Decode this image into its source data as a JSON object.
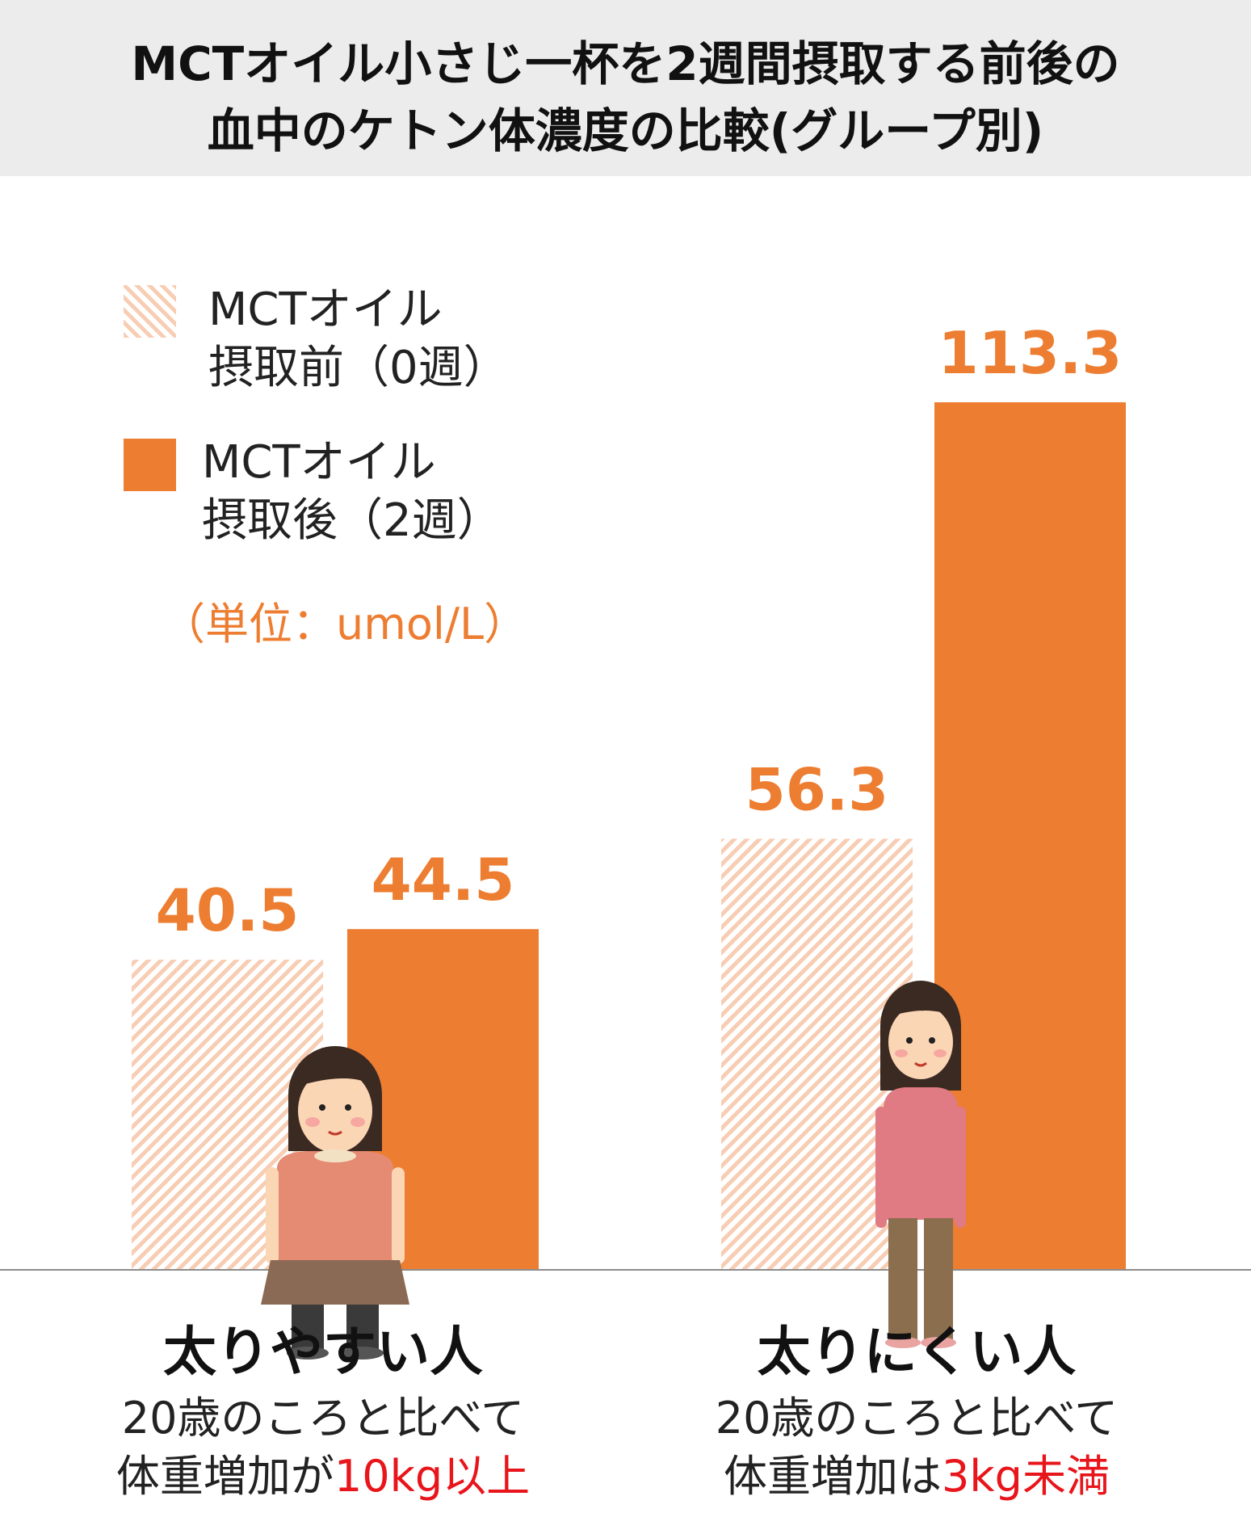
{
  "title": {
    "line1": "MCTオイル小さじ一杯を2週間摂取する前後の",
    "line2": "血中のケトン体濃度の比較(グループ別)"
  },
  "legend": {
    "before": {
      "line1": "MCTオイル",
      "line2": "摂取前（0週）"
    },
    "after": {
      "line1": "MCTオイル",
      "line2": "摂取後（2週）"
    }
  },
  "unit": "（単位：umol/L）",
  "colors": {
    "after": "#ed7d31",
    "before_stripe": "#f7cdb3",
    "value_label": "#ed7d31",
    "highlight": "#e8151b",
    "title_band": "#ececec"
  },
  "groups": [
    {
      "name": "太りやすい人",
      "desc_line1": "20歳のころと比べて",
      "desc_line2_prefix": "体重増加が",
      "desc_line2_highlight": "10kg以上",
      "illustration": "woman-heavier-icon"
    },
    {
      "name": "太りにくい人",
      "desc_line1": "20歳のころと比べて",
      "desc_line2_prefix": "体重増加は",
      "desc_line2_highlight": "3kg未満",
      "illustration": "woman-slim-icon"
    }
  ],
  "chart_data": {
    "type": "bar",
    "title": "MCTオイル小さじ一杯を2週間摂取する前後の血中のケトン体濃度の比較(グループ別)",
    "categories": [
      "太りやすい人",
      "太りにくい人"
    ],
    "series": [
      {
        "name": "MCTオイル摂取前（0週）",
        "values": [
          40.5,
          56.3
        ],
        "labels": [
          "40.5",
          "56.3"
        ]
      },
      {
        "name": "MCTオイル摂取後（2週）",
        "values": [
          44.5,
          113.3
        ],
        "labels": [
          "44.5",
          "113.3"
        ]
      }
    ],
    "unit": "umol/L",
    "ylim": [
      0,
      130
    ],
    "grid": false,
    "legend_position": "top-left"
  }
}
